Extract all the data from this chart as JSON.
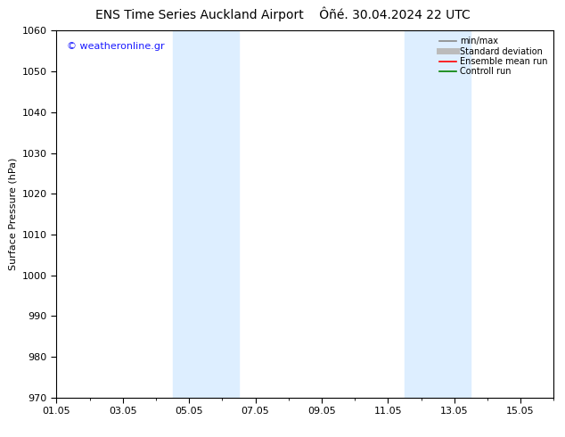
{
  "title1": "ENS Time Series Auckland Airport",
  "title2": "Ôñé. 30.04.2024 22 UTC",
  "ylabel": "Surface Pressure (hPa)",
  "ylim": [
    970,
    1060
  ],
  "yticks": [
    970,
    980,
    990,
    1000,
    1010,
    1020,
    1030,
    1040,
    1050,
    1060
  ],
  "xlim": [
    0,
    15
  ],
  "xtick_labels": [
    "01.05",
    "03.05",
    "05.05",
    "07.05",
    "09.05",
    "11.05",
    "13.05",
    "15.05"
  ],
  "xtick_positions": [
    0,
    2,
    4,
    6,
    8,
    10,
    12,
    14
  ],
  "shaded_bands": [
    {
      "x_start": 3.5,
      "x_end": 5.5
    },
    {
      "x_start": 10.5,
      "x_end": 12.5
    }
  ],
  "shade_color": "#ddeeff",
  "background_color": "#ffffff",
  "watermark": "© weatheronline.gr",
  "watermark_color": "#1a1aff",
  "legend_items": [
    {
      "label": "min/max",
      "color": "#888888",
      "lw": 1.2,
      "ls": "-"
    },
    {
      "label": "Standard deviation",
      "color": "#bbbbbb",
      "lw": 5,
      "ls": "-"
    },
    {
      "label": "Ensemble mean run",
      "color": "#ff0000",
      "lw": 1.2,
      "ls": "-"
    },
    {
      "label": "Controll run",
      "color": "#008000",
      "lw": 1.2,
      "ls": "-"
    }
  ],
  "grid_color": "#e0e0e0",
  "tick_color": "#000000",
  "spine_color": "#000000",
  "title_fontsize": 10,
  "axis_label_fontsize": 8,
  "tick_fontsize": 8,
  "watermark_fontsize": 8,
  "legend_fontsize": 7
}
